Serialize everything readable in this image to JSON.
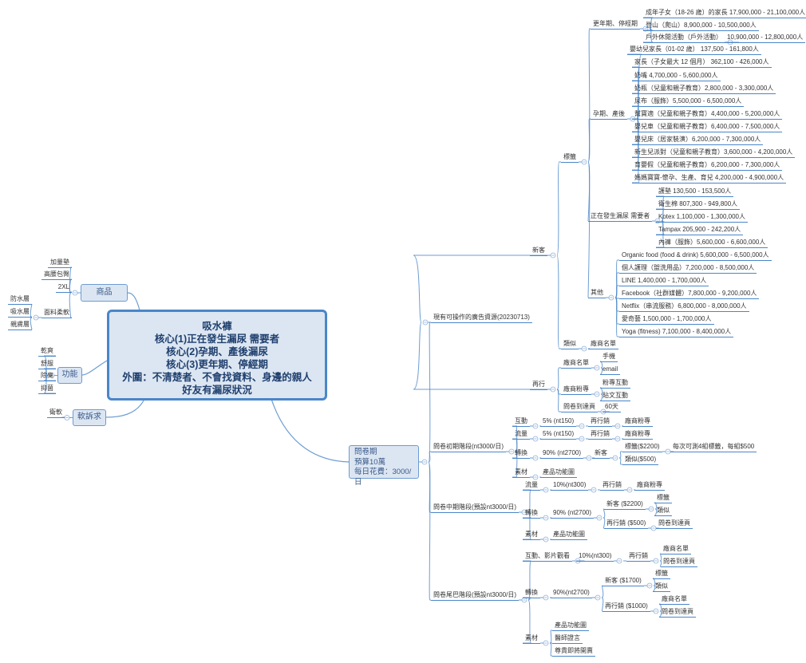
{
  "central": {
    "lines": [
      "吸水褲",
      "核心(1)正在發生漏尿 需要者",
      "核心(2)孕期、產後漏尿",
      "核心(3)更年期、停經期",
      "外圍：不清楚者、不會找資料、身邊的親人好友有漏尿狀況"
    ]
  },
  "product": {
    "label": "商品",
    "items": [
      "加量墊",
      "高腰包臀",
      "2XL",
      "面料柔軟"
    ],
    "fabric": [
      "防水層",
      "吸水層",
      "親膚層"
    ]
  },
  "function": {
    "label": "功能",
    "items": [
      "乾爽",
      "舒服",
      "除臭",
      "抑菌"
    ]
  },
  "soft": {
    "label": "軟訴求",
    "items": [
      "衛軟"
    ]
  },
  "survey": {
    "lines": [
      "問卷期",
      "預算10萬",
      "每日花費：3000/日"
    ]
  },
  "ads": {
    "label": "現有可操作的廣告資源(20230713)",
    "new": {
      "label": "新客",
      "tags": {
        "label": "標籤",
        "menopause": {
          "label": "更年期、停經期",
          "items": [
            "成年子女（18-26 歲）的家長  17,900,000 - 21,100,000人",
            "登山（爬山）8,900,000 - 10,500,000人",
            "戶外休閒活動（戶外活動）"
          ],
          "outdoor_size": "10,900,000 - 12,800,000人"
        },
        "pregnancy": {
          "label": "孕期、產後",
          "items": [
            "嬰幼兒家長（01-02 歲） 137,500 - 161,800人",
            "家長（子女最大 12 個月） 362,100 - 426,000人",
            "奶嘴 4,700,000 - 5,600,000人",
            "奶瓶（兒童和親子教育）2,800,000 - 3,300,000人",
            "尿布（服飾）5,500,000 - 6,500,000人",
            "幫寶適（兒童和親子教育）4,400,000 - 5,200,000人",
            "嬰兒車（兒童和親子教育）6,400,000 - 7,500,000人",
            "嬰兒床（居家裝潢）6,200,000 - 7,300,000人",
            "新生兒派對（兒童和親子教育）3,600,000 - 4,200,000人",
            "育嬰假（兒童和親子教育）6,200,000 - 7,300,000人",
            "媽媽寶寶-懷孕、生產、育兒 4,200,000 - 4,900,000人"
          ]
        },
        "leak": {
          "label": "正在發生漏尿 需要者",
          "items": [
            "護墊 130,500 - 153,500人",
            "衛生棉 807,300 - 949,800人",
            "Kotex 1,100,000 - 1,300,000人",
            "Tampax 205,900 - 242,200人",
            "內褲（服飾）5,600,000 - 6,600,000人"
          ]
        },
        "other": {
          "label": "其他",
          "items": [
            "Organic food (food & drink) 5,600,000 - 6,500,000人",
            "個人護理（盥洗用品）7,200,000 - 8,500,000人",
            "LINE 1,400,000 - 1,700,000人",
            "Facebook（社群媒體）7,800,000 - 9,200,000人",
            "Netflix（串流服務）6,800,000 - 8,000,000人",
            "愛奇藝 1,500,000 - 1,700,000人",
            "Yoga (fitness) 7,100,000 - 8,400,000人"
          ]
        }
      },
      "similar": {
        "label": "類似",
        "child": "廠商名單"
      }
    },
    "retarget": {
      "label": "再行",
      "vendor_list": {
        "label": "廠商名單",
        "items": [
          "手機",
          "email"
        ]
      },
      "vendor_fanpage": {
        "label": "廠商粉專",
        "items": [
          "粉專互動",
          "貼文互動"
        ]
      },
      "landing": {
        "label": "問卷到達頁",
        "child": "60天"
      }
    }
  },
  "early": {
    "label": "問卷初期階段(nt3000/日)",
    "interact": {
      "label": "互動",
      "pct": "5% (nt150)",
      "method": "再行銷",
      "target": "廠商粉專"
    },
    "traffic": {
      "label": "流量",
      "pct": "5% (nt150)",
      "method": "再行銷",
      "target": "廠商粉專"
    },
    "convert": {
      "label": "轉換",
      "pct": "90% (nt2700)",
      "method": "新客",
      "tags": "標籤($2200)",
      "tags_note": "每次可測4組標籤，每組$500",
      "similar": "類似($500)"
    },
    "material": {
      "label": "素材",
      "items": [
        "產品功能圖"
      ]
    }
  },
  "mid": {
    "label": "問卷中期階段(預設nt3000/日)",
    "traffic": {
      "label": "流量",
      "pct": "10%(nt300)",
      "method": "再行銷",
      "target": "廠商粉專"
    },
    "convert": {
      "label": "轉換",
      "pct": "90% (nt2700)",
      "new": {
        "label": "新客 ($2200)",
        "items": [
          "標籤",
          "類似"
        ]
      },
      "retarget": {
        "label": "再行銷 ($500)",
        "items": [
          "問卷到達頁"
        ]
      }
    },
    "material": {
      "label": "素材",
      "items": [
        "產品功能圖"
      ]
    }
  },
  "late": {
    "label": "問卷尾巴階段(預設nt3000/日)",
    "interact": {
      "label": "互動、影片觀看",
      "pct": "10%(nt300)",
      "method": "再行銷",
      "items": [
        "廠商名單",
        "問卷到達頁"
      ]
    },
    "convert": {
      "label": "轉換",
      "pct": "90%(nt2700)",
      "new": {
        "label": "新客 ($1700)",
        "items": [
          "標籤",
          "類似"
        ]
      },
      "retarget": {
        "label": "再行銷 ($1000)",
        "items": [
          "廠商名單",
          "問卷到達頁"
        ]
      }
    },
    "material": {
      "label": "素材",
      "items": [
        "產品功能圖",
        "醫師證言",
        "尊貴即將開賣"
      ]
    }
  },
  "colors": {
    "line": "#4a86c8",
    "box_fill": "#dce6f2",
    "central_text": "#1f3f6e"
  }
}
